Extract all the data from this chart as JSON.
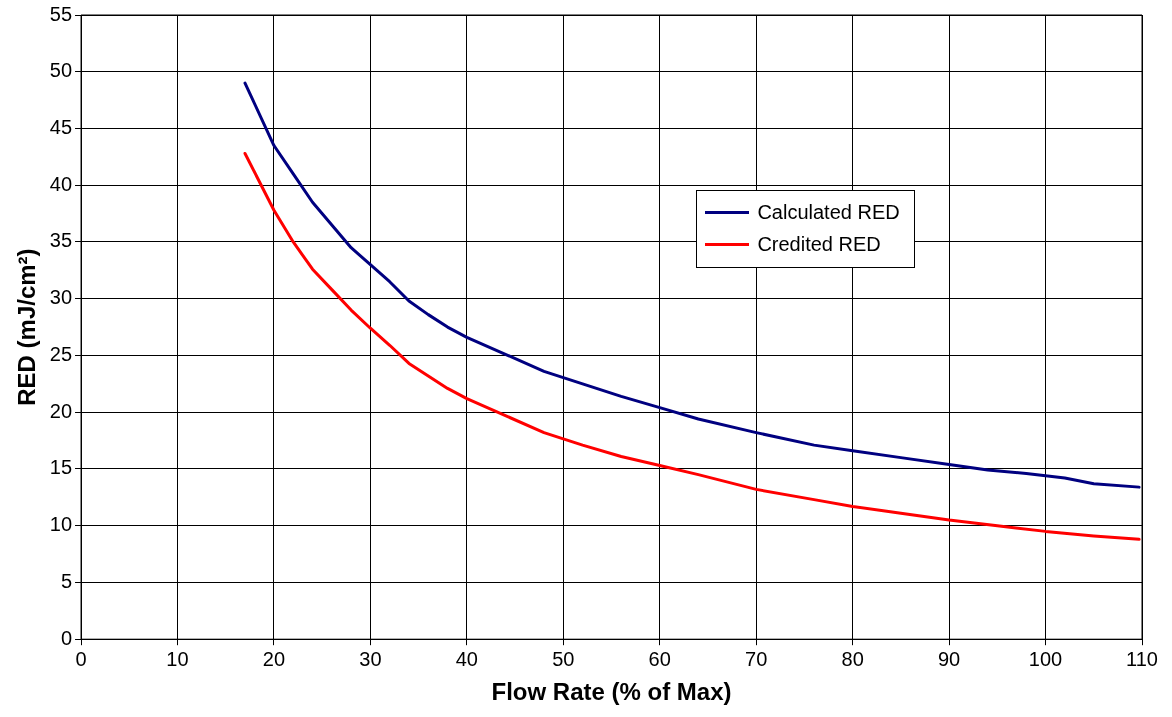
{
  "chart_data": {
    "type": "line",
    "xlabel": "Flow Rate (% of Max)",
    "ylabel": "RED (mJ/cm²)",
    "xlim": [
      0,
      110
    ],
    "xticks": [
      0,
      10,
      20,
      30,
      40,
      50,
      60,
      70,
      80,
      90,
      100,
      110
    ],
    "ylim": [
      0,
      55
    ],
    "yticks": [
      0,
      5,
      10,
      15,
      20,
      25,
      30,
      35,
      40,
      45,
      50,
      55
    ],
    "grid": true,
    "legend": "right",
    "marker": "none",
    "line_style": "solid",
    "series": [
      {
        "name": "Calculated RED",
        "color": "#000080",
        "x": [
          17,
          20,
          22,
          24,
          26,
          28,
          30,
          32,
          34,
          36,
          38,
          40,
          44,
          48,
          52,
          56,
          60,
          64,
          70,
          76,
          80,
          85,
          90,
          94,
          98,
          102,
          105,
          109.7
        ],
        "values": [
          49.0,
          43.5,
          41.0,
          38.5,
          36.5,
          34.5,
          33.0,
          31.5,
          29.8,
          28.6,
          27.5,
          26.6,
          25.1,
          23.6,
          22.5,
          21.4,
          20.4,
          19.4,
          18.2,
          17.1,
          16.6,
          16.0,
          15.4,
          14.9,
          14.6,
          14.2,
          13.7,
          13.4
        ]
      },
      {
        "name": "Credited RED",
        "color": "#ff0000",
        "x": [
          17,
          20,
          22,
          24,
          26,
          28,
          30,
          32,
          34,
          36,
          38,
          40,
          44,
          48,
          52,
          56,
          60,
          64,
          70,
          76,
          80,
          85,
          90,
          95,
          100,
          105,
          109.7
        ],
        "values": [
          42.8,
          37.8,
          35.0,
          32.6,
          30.8,
          29.0,
          27.4,
          25.9,
          24.3,
          23.2,
          22.1,
          21.2,
          19.7,
          18.2,
          17.1,
          16.1,
          15.3,
          14.5,
          13.2,
          12.3,
          11.7,
          11.1,
          10.5,
          10.0,
          9.5,
          9.1,
          8.8
        ]
      }
    ]
  }
}
